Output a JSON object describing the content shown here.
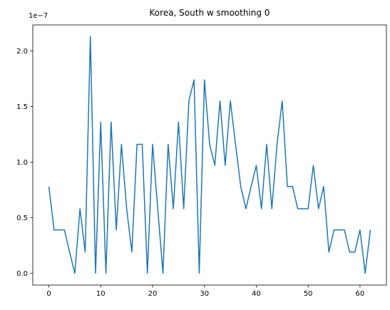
{
  "chart_data": {
    "type": "line",
    "title": "Korea, South w smoothing 0",
    "xlabel": "",
    "ylabel": "",
    "y_offset_text": "1e−7",
    "y_scale": 1e-07,
    "xlim": [
      -3.1,
      65.1
    ],
    "ylim": [
      -0.1063,
      2.2333
    ],
    "x_ticks": [
      0,
      10,
      20,
      30,
      40,
      50,
      60
    ],
    "x_tick_labels": [
      "0",
      "10",
      "20",
      "30",
      "40",
      "50",
      "60"
    ],
    "y_ticks": [
      0.0,
      0.5,
      1.0,
      1.5,
      2.0
    ],
    "y_tick_labels": [
      "0.0",
      "0.5",
      "1.0",
      "1.5",
      "2.0"
    ],
    "grid": false,
    "series": [
      {
        "color": "#1f77b4",
        "x": [
          0,
          1,
          2,
          3,
          4,
          5,
          6,
          7,
          8,
          9,
          10,
          11,
          12,
          13,
          14,
          15,
          16,
          17,
          18,
          19,
          20,
          21,
          22,
          23,
          24,
          25,
          26,
          27,
          28,
          29,
          30,
          31,
          32,
          33,
          34,
          35,
          36,
          37,
          38,
          39,
          40,
          41,
          42,
          43,
          44,
          45,
          46,
          47,
          48,
          49,
          50,
          51,
          52,
          53,
          54,
          55,
          56,
          57,
          58,
          59,
          60,
          61,
          62
        ],
        "values": [
          0.78,
          0.39,
          0.39,
          0.39,
          0.19,
          0.0,
          0.58,
          0.19,
          2.13,
          0.0,
          1.36,
          0.0,
          1.36,
          0.39,
          1.16,
          0.58,
          0.19,
          1.16,
          1.16,
          0.0,
          1.16,
          0.58,
          0.0,
          1.16,
          0.58,
          1.36,
          0.58,
          1.55,
          1.74,
          0.0,
          1.74,
          1.16,
          0.97,
          1.55,
          0.97,
          1.55,
          1.16,
          0.78,
          0.58,
          0.78,
          0.97,
          0.58,
          1.16,
          0.58,
          1.16,
          1.55,
          0.78,
          0.78,
          0.58,
          0.58,
          0.58,
          0.97,
          0.58,
          0.78,
          0.19,
          0.39,
          0.39,
          0.39,
          0.19,
          0.19,
          0.39,
          0.0,
          0.39
        ]
      }
    ]
  }
}
